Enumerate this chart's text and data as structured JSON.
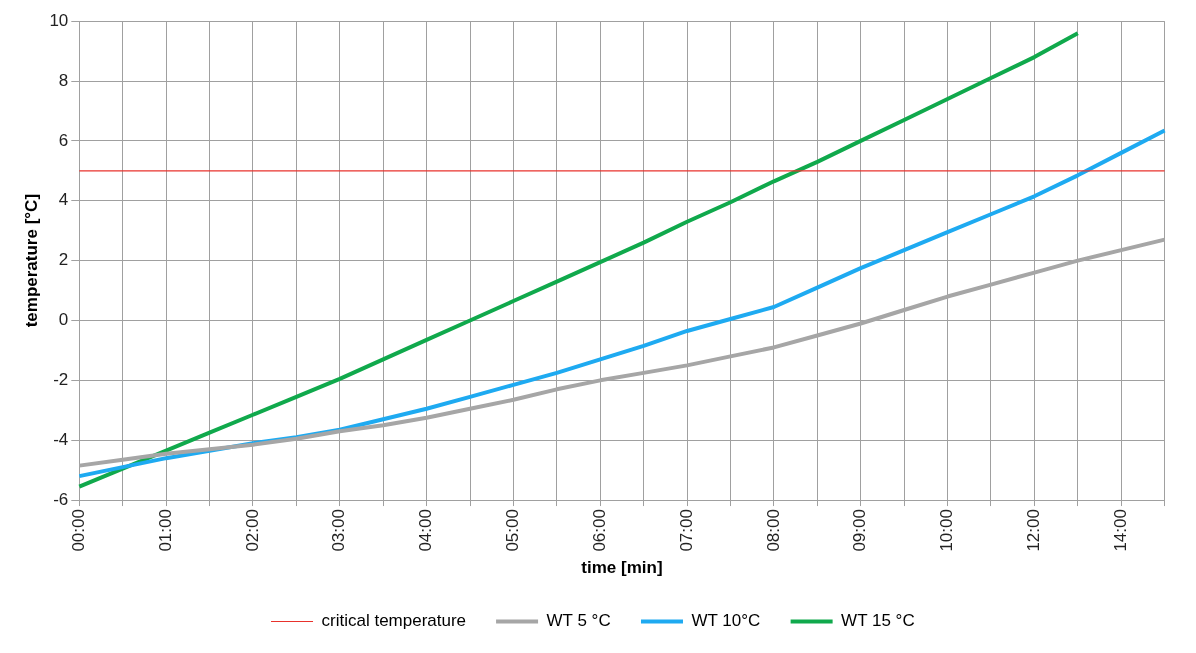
{
  "chart_data": {
    "type": "line",
    "xlabel": "time [min]",
    "ylabel": "temperature [°C]",
    "categories": [
      "00:00",
      null,
      "01:00",
      null,
      "02:00",
      null,
      "03:00",
      null,
      "04:00",
      null,
      "05:00",
      null,
      "06:00",
      null,
      "07:00",
      null,
      "08:00",
      null,
      "09:00",
      null,
      "10:00",
      null,
      "12:00",
      null,
      "14:00",
      null
    ],
    "series": [
      {
        "name": "WT 5 °C",
        "color": "#a6a6a6",
        "values": [
          -4.85,
          -4.65,
          -4.45,
          -4.3,
          -4.15,
          -3.95,
          -3.7,
          -3.5,
          -3.25,
          -2.95,
          -2.65,
          -2.3,
          -2.0,
          -1.75,
          -1.5,
          -1.2,
          -0.9,
          -0.5,
          -0.1,
          0.35,
          0.8,
          1.2,
          1.6,
          2.0,
          2.35,
          2.7
        ]
      },
      {
        "name": "WT 10°C",
        "color": "#1eaaf1",
        "values": [
          -5.2,
          -4.9,
          -4.6,
          -4.35,
          -4.1,
          -3.9,
          -3.65,
          -3.3,
          -2.95,
          -2.55,
          -2.15,
          -1.75,
          -1.3,
          -0.85,
          -0.35,
          0.05,
          0.45,
          1.1,
          1.75,
          2.35,
          2.95,
          3.55,
          4.15,
          4.85,
          5.6,
          6.35
        ]
      },
      {
        "name": "WT 15 °C",
        "color": "#10a94c",
        "values": [
          -5.55,
          -4.95,
          -4.35,
          -3.75,
          -3.15,
          -2.55,
          -1.95,
          -1.3,
          -0.65,
          0,
          0.65,
          1.3,
          1.95,
          2.6,
          3.3,
          3.95,
          4.65,
          5.3,
          6.0,
          6.7,
          7.4,
          8.1,
          8.8,
          9.6,
          null,
          null
        ]
      }
    ],
    "ref_lines": [
      {
        "axis": "y",
        "value": 5,
        "label": "critical temperature",
        "color": "#e8322c"
      }
    ],
    "ylim": [
      -6,
      10
    ],
    "yticks": [
      -6,
      -4,
      -2,
      0,
      2,
      4,
      6,
      8,
      10
    ],
    "grid": true,
    "legend": "bottom",
    "marker": "none",
    "line_style": "solid"
  }
}
